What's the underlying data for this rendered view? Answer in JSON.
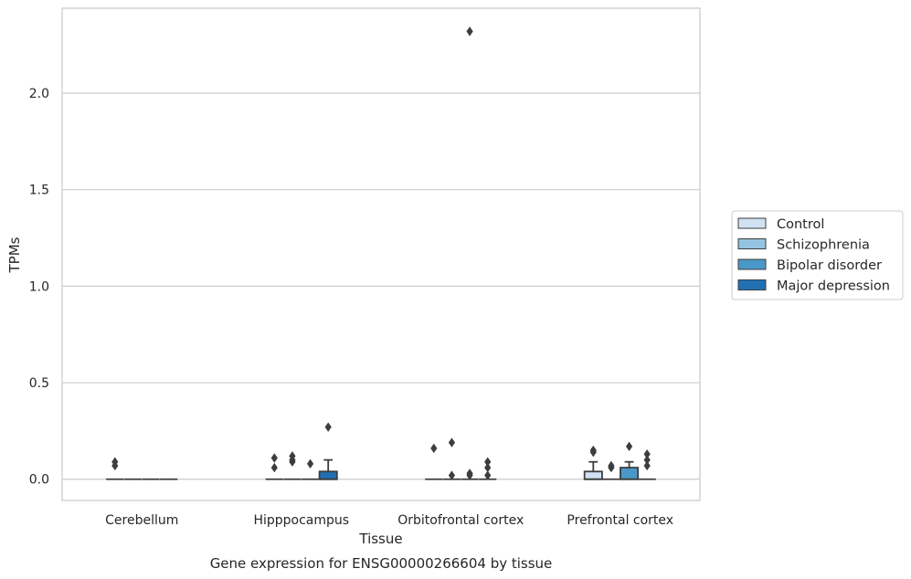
{
  "chart_data": {
    "type": "box",
    "title": "",
    "xlabel": "Tissue",
    "ylabel": "TPMs",
    "caption": "Gene expression for ENSG00000266604 by tissue",
    "categories": [
      "Cerebellum",
      "Hipppocampus",
      "Orbitofrontal cortex",
      "Prefrontal cortex"
    ],
    "ylim": [
      -0.11,
      2.44
    ],
    "yticks": [
      0.0,
      0.5,
      1.0,
      1.5,
      2.0
    ],
    "ytick_labels": [
      "0.0",
      "0.5",
      "1.0",
      "1.5",
      "2.0"
    ],
    "grid": "horizontal",
    "legend_position": "right",
    "series": [
      {
        "name": "Control",
        "color": "#d0e1f2",
        "boxes": [
          {
            "q1": 0,
            "median": 0,
            "q3": 0,
            "whisker_low": 0,
            "whisker_high": 0,
            "fliers": [
              0.09,
              0.07
            ]
          },
          {
            "q1": 0,
            "median": 0,
            "q3": 0,
            "whisker_low": 0,
            "whisker_high": 0,
            "fliers": [
              0.11,
              0.06
            ]
          },
          {
            "q1": 0,
            "median": 0,
            "q3": 0,
            "whisker_low": 0,
            "whisker_high": 0,
            "fliers": [
              0.16
            ]
          },
          {
            "q1": 0,
            "median": 0,
            "q3": 0.04,
            "whisker_low": 0,
            "whisker_high": 0.09,
            "fliers": [
              0.15,
              0.14
            ]
          }
        ]
      },
      {
        "name": "Schizophrenia",
        "color": "#94c4df",
        "boxes": [
          {
            "q1": 0,
            "median": 0,
            "q3": 0,
            "whisker_low": 0,
            "whisker_high": 0,
            "fliers": []
          },
          {
            "q1": 0,
            "median": 0,
            "q3": 0,
            "whisker_low": 0,
            "whisker_high": 0,
            "fliers": [
              0.12,
              0.1,
              0.09
            ]
          },
          {
            "q1": 0,
            "median": 0,
            "q3": 0,
            "whisker_low": 0,
            "whisker_high": 0,
            "fliers": [
              0.19,
              0.02
            ]
          },
          {
            "q1": 0,
            "median": 0,
            "q3": 0,
            "whisker_low": 0,
            "whisker_high": 0,
            "fliers": [
              0.07,
              0.06
            ]
          }
        ]
      },
      {
        "name": "Bipolar disorder",
        "color": "#4a98c9",
        "boxes": [
          {
            "q1": 0,
            "median": 0,
            "q3": 0,
            "whisker_low": 0,
            "whisker_high": 0,
            "fliers": []
          },
          {
            "q1": 0,
            "median": 0,
            "q3": 0,
            "whisker_low": 0,
            "whisker_high": 0,
            "fliers": [
              0.08
            ]
          },
          {
            "q1": 0,
            "median": 0,
            "q3": 0,
            "whisker_low": 0,
            "whisker_high": 0,
            "fliers": [
              2.32,
              0.03,
              0.02
            ]
          },
          {
            "q1": 0,
            "median": 0,
            "q3": 0.06,
            "whisker_low": 0,
            "whisker_high": 0.09,
            "fliers": [
              0.17
            ]
          }
        ]
      },
      {
        "name": "Major depression",
        "color": "#2070b4",
        "boxes": [
          {
            "q1": 0,
            "median": 0,
            "q3": 0,
            "whisker_low": 0,
            "whisker_high": 0,
            "fliers": []
          },
          {
            "q1": 0,
            "median": 0,
            "q3": 0.04,
            "whisker_low": 0,
            "whisker_high": 0.1,
            "fliers": [
              0.27
            ]
          },
          {
            "q1": 0,
            "median": 0,
            "q3": 0,
            "whisker_low": 0,
            "whisker_high": 0,
            "fliers": [
              0.09,
              0.06,
              0.02
            ]
          },
          {
            "q1": 0,
            "median": 0,
            "q3": 0,
            "whisker_low": 0,
            "whisker_high": 0,
            "fliers": [
              0.13,
              0.1,
              0.07
            ]
          }
        ]
      }
    ],
    "colors": {
      "grid": "#cccccc",
      "frame": "#cccccc",
      "edge": "#3d3d3d",
      "text": "#262626"
    }
  }
}
